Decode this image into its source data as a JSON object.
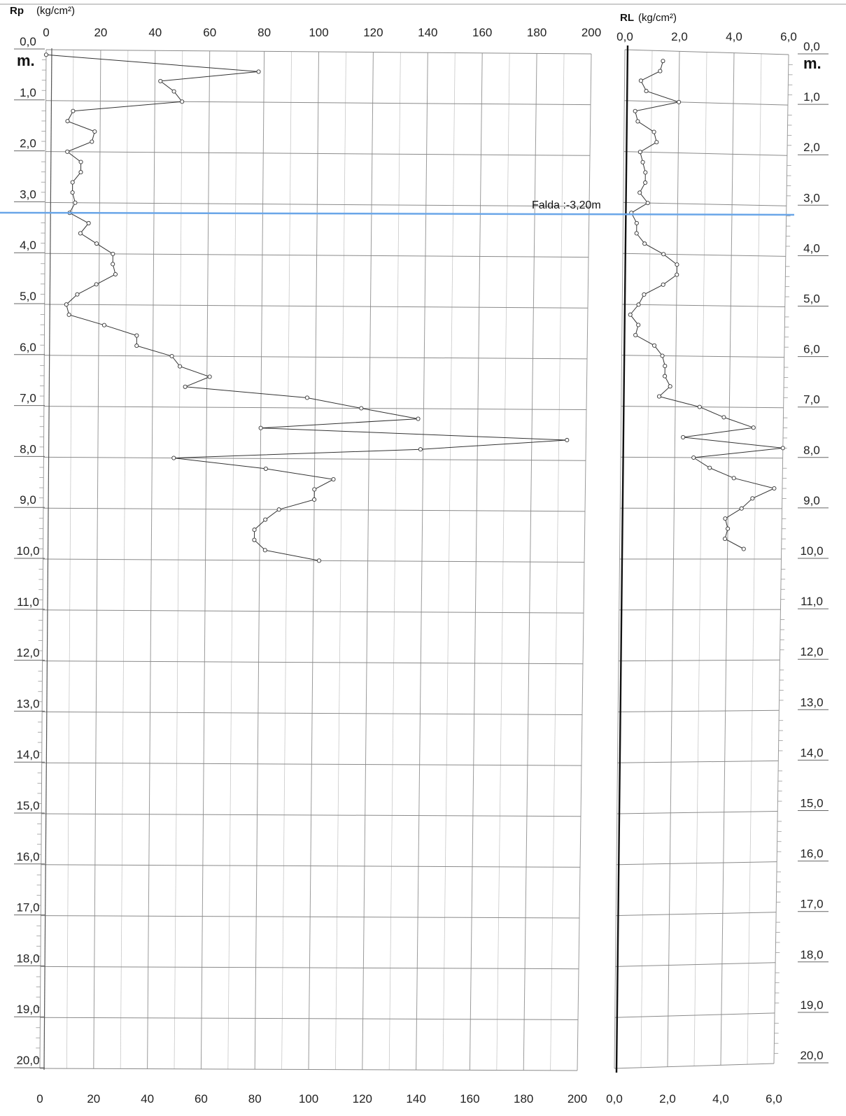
{
  "chart_data": [
    {
      "type": "line",
      "title_var": "Rp",
      "title_unit": "(kg/cm²)",
      "depth_unit": "m.",
      "xlim": [
        0,
        200
      ],
      "x_ticks": [
        "0",
        "20",
        "40",
        "60",
        "80",
        "100",
        "120",
        "140",
        "160",
        "180",
        "200"
      ],
      "ylim": [
        0,
        20
      ],
      "y_ticks": [
        "0,0",
        "1,0",
        "2,0",
        "3,0",
        "4,0",
        "5,0",
        "6,0",
        "7,0",
        "8,0",
        "9,0",
        "10,0",
        "11,0",
        "12,0",
        "13,0",
        "14,0",
        "15,0",
        "16,0",
        "17,0",
        "18,0",
        "19,0",
        "20,0"
      ],
      "grid": true,
      "series": [
        {
          "points": [
            [
              0,
              0.1
            ],
            [
              78,
              0.4
            ],
            [
              42,
              0.6
            ],
            [
              47,
              0.8
            ],
            [
              50,
              1.0
            ],
            [
              10,
              1.2
            ],
            [
              8,
              1.4
            ],
            [
              18,
              1.6
            ],
            [
              17,
              1.8
            ],
            [
              8,
              2.0
            ],
            [
              13,
              2.2
            ],
            [
              13,
              2.4
            ],
            [
              10,
              2.6
            ],
            [
              10,
              2.8
            ],
            [
              11,
              3.0
            ],
            [
              9,
              3.2
            ],
            [
              16,
              3.4
            ],
            [
              13,
              3.6
            ],
            [
              19,
              3.8
            ],
            [
              25,
              4.0
            ],
            [
              25,
              4.2
            ],
            [
              26,
              4.4
            ],
            [
              19,
              4.6
            ],
            [
              12,
              4.8
            ],
            [
              8,
              5.0
            ],
            [
              9,
              5.2
            ],
            [
              22,
              5.4
            ],
            [
              34,
              5.6
            ],
            [
              34,
              5.8
            ],
            [
              47,
              6.0
            ],
            [
              50,
              6.2
            ],
            [
              61,
              6.4
            ],
            [
              52,
              6.6
            ],
            [
              97,
              6.8
            ],
            [
              117,
              7.0
            ],
            [
              138,
              7.2
            ],
            [
              80,
              7.4
            ],
            [
              193,
              7.6
            ],
            [
              139,
              7.8
            ],
            [
              48,
              8.0
            ],
            [
              82,
              8.2
            ],
            [
              107,
              8.4
            ],
            [
              100,
              8.6
            ],
            [
              100,
              8.8
            ],
            [
              87,
              9.0
            ],
            [
              82,
              9.2
            ],
            [
              78,
              9.4
            ],
            [
              78,
              9.6
            ],
            [
              82,
              9.8
            ],
            [
              102,
              10.0
            ]
          ]
        }
      ]
    },
    {
      "type": "line",
      "title_var": "RL",
      "title_unit": "(kg/cm²)",
      "depth_unit": "m.",
      "xlim": [
        0,
        6
      ],
      "x_ticks": [
        "0,0",
        "2,0",
        "4,0",
        "6,0"
      ],
      "ylim": [
        0,
        20
      ],
      "y_ticks": [
        "0,0",
        "1,0",
        "2,0",
        "3,0",
        "4,0",
        "5,0",
        "6,0",
        "7,0",
        "8,0",
        "9,0",
        "10,0",
        "11,0",
        "12,0",
        "13,0",
        "14,0",
        "15,0",
        "16,0",
        "17,0",
        "18,0",
        "19,0",
        "20,0"
      ],
      "grid": true,
      "series": [
        {
          "points": [
            [
              1.4,
              0.2
            ],
            [
              1.3,
              0.4
            ],
            [
              0.6,
              0.6
            ],
            [
              0.8,
              0.8
            ],
            [
              2.0,
              1.0
            ],
            [
              0.4,
              1.2
            ],
            [
              0.5,
              1.4
            ],
            [
              1.1,
              1.6
            ],
            [
              1.2,
              1.8
            ],
            [
              0.6,
              2.0
            ],
            [
              0.7,
              2.2
            ],
            [
              0.8,
              2.4
            ],
            [
              0.8,
              2.6
            ],
            [
              0.6,
              2.8
            ],
            [
              0.9,
              3.0
            ],
            [
              0.3,
              3.2
            ],
            [
              0.5,
              3.4
            ],
            [
              0.5,
              3.6
            ],
            [
              0.8,
              3.8
            ],
            [
              1.5,
              4.0
            ],
            [
              2.0,
              4.2
            ],
            [
              2.0,
              4.4
            ],
            [
              1.5,
              4.6
            ],
            [
              0.8,
              4.8
            ],
            [
              0.6,
              5.0
            ],
            [
              0.3,
              5.2
            ],
            [
              0.6,
              5.4
            ],
            [
              0.5,
              5.6
            ],
            [
              1.2,
              5.8
            ],
            [
              1.5,
              6.0
            ],
            [
              1.6,
              6.2
            ],
            [
              1.6,
              6.4
            ],
            [
              1.8,
              6.6
            ],
            [
              1.4,
              6.8
            ],
            [
              2.9,
              7.0
            ],
            [
              3.8,
              7.2
            ],
            [
              4.9,
              7.4
            ],
            [
              2.3,
              7.6
            ],
            [
              6.0,
              7.8
            ],
            [
              2.7,
              8.0
            ],
            [
              3.3,
              8.2
            ],
            [
              4.2,
              8.4
            ],
            [
              5.7,
              8.6
            ],
            [
              4.9,
              8.8
            ],
            [
              4.5,
              9.0
            ],
            [
              3.9,
              9.2
            ],
            [
              4.0,
              9.4
            ],
            [
              3.9,
              9.6
            ],
            [
              4.6,
              9.8
            ]
          ]
        }
      ]
    }
  ],
  "water_table": {
    "label": "Falda :-3,20m",
    "depth": 3.2,
    "color": "#6aa6e8"
  }
}
